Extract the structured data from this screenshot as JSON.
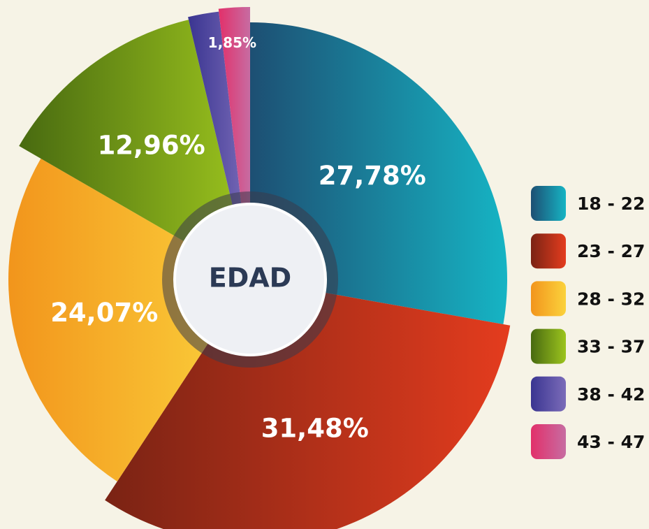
{
  "chart_data": {
    "type": "pie",
    "title": "EDAD",
    "categories": [
      "18 - 22",
      "23 - 27",
      "28 - 32",
      "33 - 37",
      "38 - 42",
      "43 - 47"
    ],
    "values": [
      27.78,
      31.48,
      24.07,
      12.96,
      1.85,
      1.85
    ],
    "value_labels": [
      "27,78%",
      "31,48%",
      "24,07%",
      "12,96%",
      null,
      "1,85%"
    ],
    "colors": [
      [
        "#1d4f73",
        "#16b4c4"
      ],
      [
        "#7a2314",
        "#e43c1e"
      ],
      [
        "#f2951c",
        "#fbd23c"
      ],
      [
        "#486a10",
        "#9cc41e"
      ],
      [
        "#3a3591",
        "#7b6cb9"
      ],
      [
        "#e2306a",
        "#c76ca2"
      ]
    ],
    "legend": "right"
  }
}
